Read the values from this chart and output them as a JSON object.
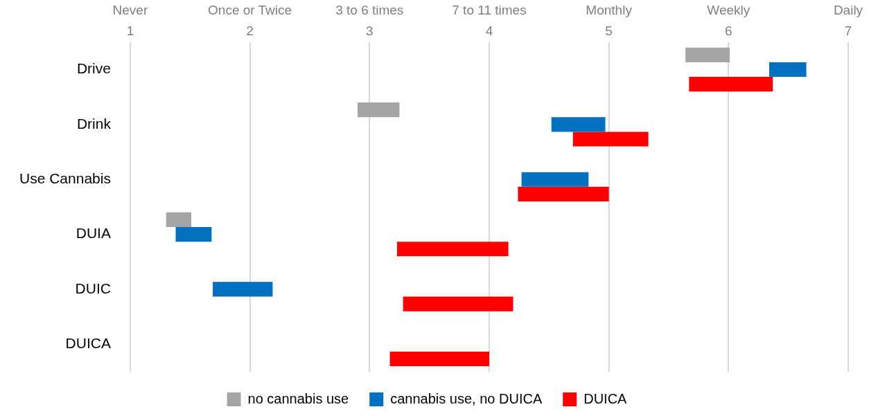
{
  "chart_data": {
    "type": "bar",
    "orientation": "horizontal",
    "categories": [
      "Drive",
      "Drink",
      "Use Cannabis",
      "DUIA",
      "DUIC",
      "DUICA"
    ],
    "series": [
      {
        "name": "no cannabis use",
        "color": "#a5a5a5",
        "base": [
          5.64,
          2.9,
          null,
          1.3,
          null,
          null
        ],
        "values": [
          0.37,
          0.35,
          null,
          0.21,
          null,
          null
        ]
      },
      {
        "name": "cannabis use, no DUICA",
        "color": "#0070c0",
        "base": [
          6.34,
          4.52,
          4.27,
          1.38,
          1.69,
          null
        ],
        "values": [
          0.31,
          0.45,
          0.56,
          0.3,
          0.5,
          null
        ]
      },
      {
        "name": "DUICA",
        "color": "#ff0000",
        "base": [
          5.67,
          4.7,
          4.24,
          3.23,
          3.28,
          3.17
        ],
        "values": [
          0.7,
          0.63,
          0.76,
          0.93,
          0.92,
          0.83
        ]
      }
    ],
    "xlim": [
      1,
      7
    ],
    "xticks": [
      1,
      2,
      3,
      4,
      5,
      6,
      7
    ],
    "annotations": [
      "Never",
      "Once or Twice",
      "3 to 6 times",
      "7 to 11 times",
      "Monthly",
      "Weekly",
      "Daily"
    ],
    "grid": "x",
    "legend": "bottom"
  }
}
